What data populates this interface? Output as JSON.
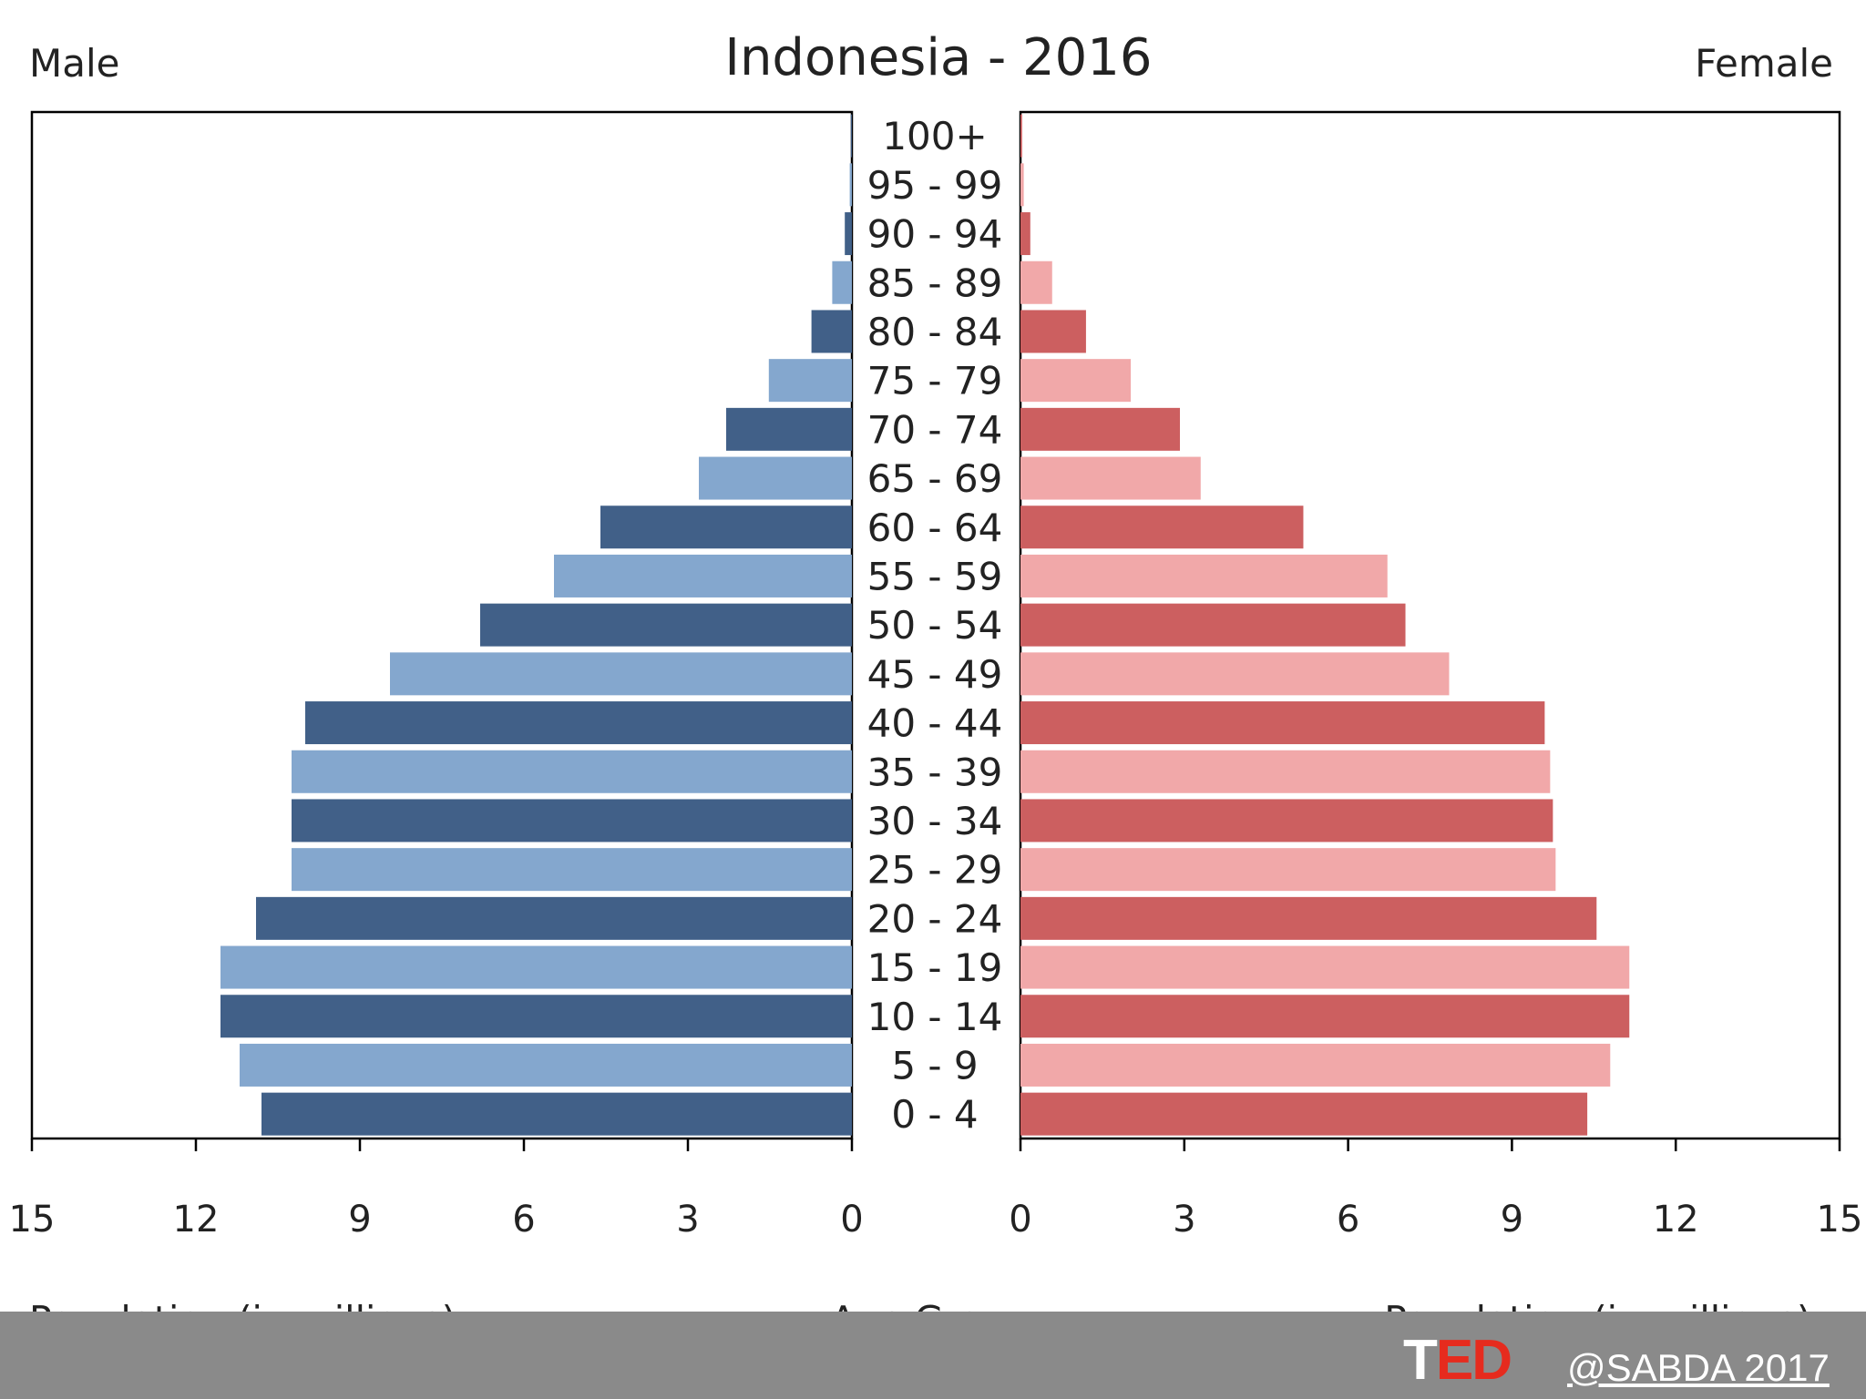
{
  "colors": {
    "male_dark": "#416088",
    "male_light": "#84a7ce",
    "female_dark": "#cc5f60",
    "female_light": "#f1a8a9",
    "footer_bar": "#8a8a8a",
    "ted_red": "#e62b1e"
  },
  "chart_data": {
    "type": "bar",
    "subtype": "population-pyramid",
    "title": "Indonesia - 2016",
    "left_header": "Male",
    "right_header": "Female",
    "xlabel_left": "Population (in millions)",
    "xlabel_center": "Age Group",
    "xlabel_right": "Population (in millions)",
    "xlim": [
      0,
      15
    ],
    "xticks": [
      "0",
      "3",
      "6",
      "9",
      "12",
      "15"
    ],
    "grid": false,
    "categories": [
      "100+",
      "95 - 99",
      "90 - 94",
      "85 - 89",
      "80 - 84",
      "75 - 79",
      "70 - 74",
      "65 - 69",
      "60 - 64",
      "55 - 59",
      "50 - 54",
      "45 - 49",
      "40 - 44",
      "35 - 39",
      "30 - 34",
      "25 - 29",
      "20 - 24",
      "15 - 19",
      "10 - 14",
      "5 - 9",
      "0 - 4"
    ],
    "series": [
      {
        "name": "Male",
        "values": [
          0.02,
          0.04,
          0.13,
          0.36,
          0.74,
          1.52,
          2.3,
          2.8,
          4.6,
          5.45,
          6.8,
          8.45,
          10.0,
          10.25,
          10.25,
          10.25,
          10.9,
          11.55,
          11.55,
          11.2,
          10.8
        ]
      },
      {
        "name": "Female",
        "values": [
          0.03,
          0.06,
          0.18,
          0.58,
          1.2,
          2.02,
          2.92,
          3.3,
          5.18,
          6.72,
          7.05,
          7.85,
          9.6,
          9.7,
          9.75,
          9.8,
          10.55,
          11.15,
          11.15,
          10.8,
          10.38
        ]
      }
    ]
  },
  "footer": {
    "logo_t": "T",
    "logo_ed": "ED",
    "credit": "@SABDA 2017"
  }
}
